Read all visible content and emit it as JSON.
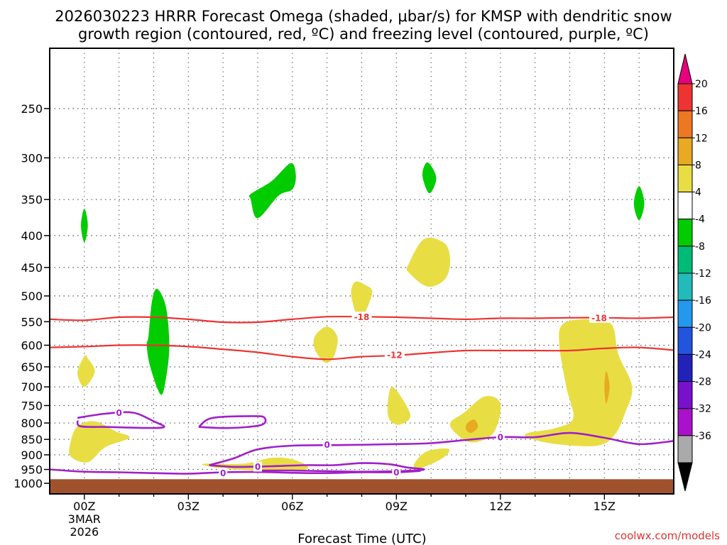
{
  "chart_data": {
    "type": "heatmap",
    "title_line1": "2026030223 HRRR Forecast Omega (shaded, μbar/s) for KMSP with dendritic snow",
    "title_line2": "growth region (contoured, red, ºC) and freezing level (contoured, purple, ºC)",
    "xlabel": "Forecast Time (UTC)",
    "ylabel": "",
    "credit": "coolwx.com/models",
    "x_range_hours": [
      -1,
      17
    ],
    "y_range_hpa": [
      200,
      1040
    ],
    "y_scale": "log",
    "x_ticks": [
      {
        "hour": 0,
        "label": "00Z",
        "date_line1": "3MAR",
        "date_line2": "2026"
      },
      {
        "hour": 3,
        "label": "03Z"
      },
      {
        "hour": 6,
        "label": "06Z"
      },
      {
        "hour": 9,
        "label": "09Z"
      },
      {
        "hour": 12,
        "label": "12Z"
      },
      {
        "hour": 15,
        "label": "15Z"
      }
    ],
    "y_ticks": [
      250,
      300,
      350,
      400,
      450,
      500,
      550,
      600,
      650,
      700,
      750,
      800,
      850,
      900,
      950,
      1000
    ],
    "ground_top_hpa": 985,
    "ground_color": "#a0522d",
    "colorbar": {
      "labels": [
        "20",
        "16",
        "12",
        "8",
        "4",
        "-4",
        "-8",
        "-12",
        "-16",
        "-20",
        "-24",
        "-28",
        "-32",
        "-36"
      ],
      "colors": [
        "#e6007e",
        "#ee3333",
        "#ee7722",
        "#e8aa22",
        "#e8de44",
        "#ffffff",
        "#00cc00",
        "#00bb77",
        "#22bbbb",
        "#2299ee",
        "#2255dd",
        "#2222bb",
        "#7711cc",
        "#aa11cc",
        "#aaaaaa",
        "#000000"
      ]
    },
    "omega_regions": [
      {
        "color": "#00cc00",
        "points": [
          [
            0,
            362
          ],
          [
            -0.1,
            385
          ],
          [
            0,
            410
          ],
          [
            0.1,
            385
          ]
        ]
      },
      {
        "color": "#00cc00",
        "points": [
          [
            1.85,
            580
          ],
          [
            1.95,
            510
          ],
          [
            2.1,
            487
          ],
          [
            2.35,
            520
          ],
          [
            2.45,
            600
          ],
          [
            2.35,
            680
          ],
          [
            2.2,
            720
          ],
          [
            1.9,
            650
          ],
          [
            1.8,
            600
          ]
        ]
      },
      {
        "color": "#00cc00",
        "points": [
          [
            4.8,
            350
          ],
          [
            5.0,
            375
          ],
          [
            5.6,
            345
          ],
          [
            6.0,
            337
          ],
          [
            6.1,
            320
          ],
          [
            5.95,
            306
          ],
          [
            5.4,
            327
          ],
          [
            4.8,
            343
          ]
        ]
      },
      {
        "color": "#00cc00",
        "points": [
          [
            9.9,
            305
          ],
          [
            10.15,
            323
          ],
          [
            9.95,
            342
          ],
          [
            9.75,
            320
          ]
        ]
      },
      {
        "color": "#00cc00",
        "points": [
          [
            16,
            333
          ],
          [
            16.15,
            355
          ],
          [
            16,
            378
          ],
          [
            15.85,
            355
          ]
        ]
      },
      {
        "color": "#e8de44",
        "points": [
          [
            0,
            625
          ],
          [
            -0.2,
            665
          ],
          [
            0,
            700
          ],
          [
            0.3,
            662
          ],
          [
            0.1,
            630
          ]
        ]
      },
      {
        "color": "#e8de44",
        "points": [
          [
            -0.4,
            860
          ],
          [
            -0.2,
            810
          ],
          [
            0.3,
            795
          ],
          [
            0.9,
            825
          ],
          [
            1.3,
            845
          ],
          [
            0.6,
            875
          ],
          [
            0.1,
            925
          ],
          [
            -0.4,
            905
          ]
        ]
      },
      {
        "color": "#e8de44",
        "points": [
          [
            7.8,
            475
          ],
          [
            8.1,
            480
          ],
          [
            8.3,
            495
          ],
          [
            7.95,
            545
          ],
          [
            7.7,
            500
          ]
        ]
      },
      {
        "color": "#e8de44",
        "points": [
          [
            6.65,
            580
          ],
          [
            7.0,
            560
          ],
          [
            7.3,
            582
          ],
          [
            7.2,
            625
          ],
          [
            6.95,
            640
          ],
          [
            6.65,
            610
          ]
        ]
      },
      {
        "color": "#e8de44",
        "points": [
          [
            9.35,
            445
          ],
          [
            9.8,
            405
          ],
          [
            10.4,
            412
          ],
          [
            10.55,
            440
          ],
          [
            10.4,
            470
          ],
          [
            9.9,
            483
          ],
          [
            9.35,
            458
          ]
        ]
      },
      {
        "color": "#e8de44",
        "points": [
          [
            8.75,
            745
          ],
          [
            8.9,
            700
          ],
          [
            9.4,
            775
          ],
          [
            9.1,
            805
          ],
          [
            8.8,
            790
          ]
        ]
      },
      {
        "color": "#e8de44",
        "points": [
          [
            9.5,
            935
          ],
          [
            9.85,
            890
          ],
          [
            10.5,
            880
          ],
          [
            10.35,
            910
          ],
          [
            9.7,
            945
          ]
        ]
      },
      {
        "color": "#e8de44",
        "points": [
          [
            3.5,
            930
          ],
          [
            4.6,
            930
          ],
          [
            5.4,
            910
          ],
          [
            6.0,
            915
          ],
          [
            6.45,
            940
          ],
          [
            6.2,
            955
          ],
          [
            5.2,
            955
          ],
          [
            4.1,
            948
          ],
          [
            3.5,
            937
          ]
        ]
      },
      {
        "color": "#e8de44",
        "points": [
          [
            10.95,
            770
          ],
          [
            11.55,
            725
          ],
          [
            12.0,
            745
          ],
          [
            11.8,
            830
          ],
          [
            11.2,
            860
          ],
          [
            10.75,
            835
          ],
          [
            10.55,
            800
          ]
        ]
      },
      {
        "color": "#e8de44",
        "points": [
          [
            13.7,
            600
          ],
          [
            13.8,
            555
          ],
          [
            14.5,
            545
          ],
          [
            15.2,
            555
          ],
          [
            15.4,
            620
          ],
          [
            15.8,
            700
          ],
          [
            15.6,
            770
          ],
          [
            15.3,
            835
          ],
          [
            14.8,
            870
          ],
          [
            13.6,
            865
          ],
          [
            12.8,
            845
          ],
          [
            12.8,
            830
          ],
          [
            13.6,
            815
          ],
          [
            14.1,
            785
          ],
          [
            13.9,
            700
          ]
        ]
      },
      {
        "color": "#e8aa22",
        "points": [
          [
            11.05,
            800
          ],
          [
            11.25,
            790
          ],
          [
            11.35,
            812
          ],
          [
            11.15,
            830
          ],
          [
            11.0,
            818
          ]
        ]
      },
      {
        "color": "#e8aa22",
        "points": [
          [
            15.0,
            700
          ],
          [
            15.05,
            660
          ],
          [
            15.15,
            700
          ],
          [
            15.05,
            745
          ]
        ]
      }
    ],
    "dgz_contours": [
      {
        "label": "-18",
        "color": "#ee3333",
        "label_hour": 7.9,
        "points": [
          [
            -1,
            545
          ],
          [
            0,
            547
          ],
          [
            1,
            541
          ],
          [
            2,
            541
          ],
          [
            3,
            545
          ],
          [
            4,
            551
          ],
          [
            5,
            551
          ],
          [
            6,
            545
          ],
          [
            7,
            540
          ],
          [
            8,
            540
          ],
          [
            9,
            541
          ],
          [
            10,
            543
          ],
          [
            11,
            545
          ],
          [
            12,
            543
          ],
          [
            13,
            543
          ],
          [
            14,
            542
          ],
          [
            15,
            542
          ],
          [
            16,
            543
          ],
          [
            17,
            541
          ]
        ]
      },
      {
        "label": "-12",
        "color": "#ee3333",
        "label_hour": 9.0,
        "points": [
          [
            -1,
            605
          ],
          [
            0,
            603
          ],
          [
            1,
            600
          ],
          [
            2,
            600
          ],
          [
            3,
            603
          ],
          [
            4,
            609
          ],
          [
            5,
            616
          ],
          [
            6,
            626
          ],
          [
            7,
            632
          ],
          [
            8,
            626
          ],
          [
            9,
            623
          ],
          [
            10,
            617
          ],
          [
            11,
            612
          ],
          [
            12,
            612
          ],
          [
            13,
            612
          ],
          [
            14,
            612
          ],
          [
            15,
            607
          ],
          [
            16,
            605
          ],
          [
            17,
            611
          ]
        ]
      }
    ],
    "freezing_contours": [
      {
        "label": "0",
        "color": "#a020c8",
        "label_hour": 1.3,
        "label_hpa": 770,
        "points": [
          [
            -0.2,
            785
          ],
          [
            0.6,
            773
          ],
          [
            1.4,
            770
          ],
          [
            2.0,
            795
          ],
          [
            2.3,
            812
          ],
          [
            1.8,
            815
          ],
          [
            0.7,
            812
          ],
          [
            -0.1,
            810
          ],
          [
            -0.2,
            793
          ]
        ]
      },
      {
        "label": "0",
        "color": "#a020c8",
        "label_hour": -1,
        "label_hpa": 0,
        "points": [
          [
            3.3,
            812
          ],
          [
            3.7,
            785
          ],
          [
            4.9,
            780
          ],
          [
            5.2,
            785
          ],
          [
            5.1,
            806
          ],
          [
            4.2,
            815
          ],
          [
            3.3,
            812
          ]
        ]
      },
      {
        "label": "0",
        "color": "#a020c8",
        "label_hour": 7.0,
        "label_hpa": 870,
        "points": [
          [
            3.6,
            935
          ],
          [
            4.3,
            912
          ],
          [
            5.0,
            882
          ],
          [
            6.0,
            870
          ],
          [
            7.5,
            868
          ],
          [
            9.0,
            865
          ],
          [
            10.0,
            862
          ],
          [
            11.0,
            852
          ],
          [
            12.0,
            843
          ],
          [
            13.0,
            843
          ],
          [
            14.0,
            830
          ],
          [
            15.0,
            845
          ],
          [
            16.0,
            865
          ],
          [
            17.0,
            855
          ]
        ]
      },
      {
        "label": "0",
        "color": "#a020c8",
        "label_hour": 5.0,
        "label_hpa": 940,
        "points": [
          [
            3.6,
            935
          ],
          [
            4.3,
            941
          ],
          [
            5.0,
            940
          ],
          [
            5.6,
            938
          ],
          [
            6.4,
            935
          ],
          [
            7.2,
            935
          ],
          [
            8.0,
            928
          ],
          [
            8.8,
            932
          ],
          [
            9.3,
            943
          ],
          [
            9.8,
            950
          ],
          [
            9.3,
            955
          ],
          [
            8.0,
            958
          ],
          [
            7.0,
            956
          ],
          [
            6.0,
            954
          ],
          [
            5.0,
            954
          ]
        ]
      },
      {
        "label": "0",
        "color": "#a020c8",
        "label_hour": 4.0,
        "label_hpa": 960,
        "points": [
          [
            -1,
            950
          ],
          [
            0,
            958
          ],
          [
            1,
            960
          ],
          [
            2,
            963
          ],
          [
            3,
            965
          ],
          [
            4,
            960
          ],
          [
            5,
            959
          ],
          [
            6,
            962
          ],
          [
            7,
            963
          ],
          [
            8,
            960
          ],
          [
            9,
            960
          ],
          [
            9.7,
            955
          ]
        ]
      }
    ],
    "contour_label_positions": [
      {
        "text": "-18",
        "hour": 8.0,
        "hpa": 540,
        "color": "#ee3333"
      },
      {
        "text": "-12",
        "hour": 8.95,
        "hpa": 622,
        "color": "#ee3333"
      },
      {
        "text": "-18",
        "hour": 14.85,
        "hpa": 542,
        "color": "#ee3333"
      },
      {
        "text": "0",
        "hour": 1.0,
        "hpa": 770,
        "color": "#a020c8"
      },
      {
        "text": "0",
        "hour": 7.0,
        "hpa": 867,
        "color": "#a020c8"
      },
      {
        "text": "0",
        "hour": 12.0,
        "hpa": 843,
        "color": "#a020c8"
      },
      {
        "text": "0",
        "hour": 5.0,
        "hpa": 940,
        "color": "#a020c8"
      },
      {
        "text": "0",
        "hour": 9.0,
        "hpa": 960,
        "color": "#a020c8"
      },
      {
        "text": "0",
        "hour": 4.0,
        "hpa": 962,
        "color": "#a020c8"
      }
    ]
  }
}
